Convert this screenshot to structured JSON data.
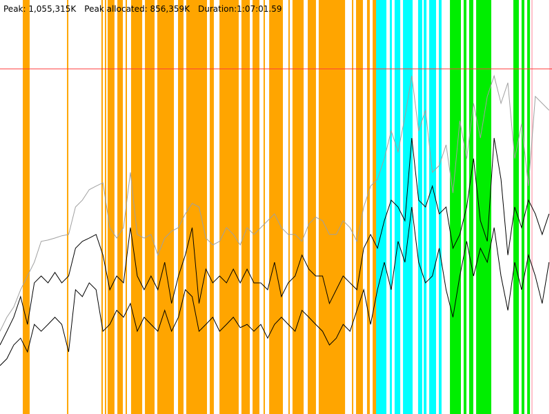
{
  "chart_data": {
    "type": "line",
    "header": [
      "Peak: 1,055,315K",
      "Peak allocated: 856,359K",
      "Duration:1:07:01.59"
    ],
    "xlim": [
      0,
      4021.59
    ],
    "ylim": [
      0,
      1266000
    ],
    "peak_line": {
      "value": 1055315,
      "color": "#ff3b3b"
    },
    "bands": [
      {
        "color": "#ffa500",
        "spans": [
          [
            166,
            216
          ],
          [
            488,
            498
          ],
          [
            739,
            749
          ],
          [
            764,
            774
          ],
          [
            784,
            834
          ],
          [
            855,
            895
          ],
          [
            915,
            925
          ],
          [
            955,
            1036
          ],
          [
            1056,
            1126
          ],
          [
            1146,
            1267
          ],
          [
            1297,
            1337
          ],
          [
            1357,
            1508
          ],
          [
            1528,
            1558
          ],
          [
            1599,
            1739
          ],
          [
            1759,
            1820
          ],
          [
            1840,
            1890
          ],
          [
            1920,
            1930
          ],
          [
            1961,
            2061
          ],
          [
            2101,
            2111
          ],
          [
            2131,
            2212
          ],
          [
            2242,
            2302
          ],
          [
            2322,
            2514
          ],
          [
            2564,
            2574
          ],
          [
            2594,
            2644
          ],
          [
            2674,
            2694
          ],
          [
            2715,
            2745
          ]
        ]
      },
      {
        "color": "#00ffff",
        "spans": [
          [
            2740,
            2815
          ],
          [
            2840,
            2855
          ],
          [
            2875,
            2916
          ],
          [
            2936,
            3006
          ],
          [
            3046,
            3076
          ],
          [
            3087,
            3107
          ],
          [
            3127,
            3177
          ],
          [
            3197,
            3217
          ]
        ]
      },
      {
        "color": "#00ee00",
        "spans": [
          [
            3278,
            3358
          ],
          [
            3378,
            3398
          ],
          [
            3418,
            3448
          ],
          [
            3469,
            3579
          ],
          [
            3740,
            3780
          ],
          [
            3800,
            3820
          ],
          [
            3841,
            3861
          ]
        ]
      },
      {
        "color": "#ffc0cb",
        "spans": [
          [
            3871,
            3881
          ],
          [
            4001,
            4022
          ]
        ]
      }
    ],
    "x": [
      0,
      50,
      100,
      150,
      200,
      250,
      300,
      350,
      400,
      450,
      500,
      550,
      600,
      650,
      700,
      750,
      800,
      850,
      900,
      950,
      1000,
      1050,
      1100,
      1150,
      1200,
      1250,
      1300,
      1350,
      1400,
      1450,
      1500,
      1550,
      1600,
      1650,
      1700,
      1750,
      1800,
      1850,
      1900,
      1950,
      2000,
      2050,
      2100,
      2150,
      2200,
      2250,
      2300,
      2350,
      2400,
      2450,
      2500,
      2550,
      2600,
      2650,
      2700,
      2750,
      2800,
      2850,
      2900,
      2950,
      3000,
      3050,
      3100,
      3150,
      3200,
      3250,
      3300,
      3350,
      3400,
      3450,
      3500,
      3550,
      3600,
      3650,
      3700,
      3750,
      3800,
      3850,
      3900,
      3950,
      4000
    ],
    "series": [
      {
        "color": "#a0a0a0",
        "values": [
          253000,
          296000,
          327000,
          380000,
          422000,
          464000,
          528000,
          532000,
          538000,
          545000,
          549000,
          633000,
          654000,
          686000,
          697000,
          707000,
          570000,
          538000,
          570000,
          739000,
          549000,
          538000,
          549000,
          486000,
          538000,
          559000,
          570000,
          612000,
          644000,
          633000,
          538000,
          517000,
          528000,
          570000,
          549000,
          517000,
          570000,
          549000,
          570000,
          591000,
          612000,
          570000,
          549000,
          549000,
          528000,
          581000,
          602000,
          591000,
          549000,
          549000,
          591000,
          570000,
          528000,
          633000,
          697000,
          718000,
          781000,
          866000,
          802000,
          908000,
          1034000,
          866000,
          929000,
          739000,
          760000,
          823000,
          676000,
          897000,
          781000,
          950000,
          844000,
          971000,
          1034000,
          950000,
          1013000,
          781000,
          887000,
          697000,
          971000,
          950000,
          929000
        ]
      },
      {
        "color": "#000000",
        "values": [
          211000,
          253000,
          296000,
          359000,
          274000,
          401000,
          422000,
          401000,
          433000,
          401000,
          422000,
          507000,
          528000,
          538000,
          549000,
          486000,
          380000,
          422000,
          401000,
          570000,
          422000,
          380000,
          422000,
          380000,
          464000,
          338000,
          422000,
          486000,
          570000,
          338000,
          443000,
          401000,
          422000,
          401000,
          443000,
          401000,
          443000,
          401000,
          401000,
          380000,
          464000,
          359000,
          401000,
          422000,
          486000,
          443000,
          422000,
          422000,
          338000,
          380000,
          422000,
          401000,
          380000,
          507000,
          549000,
          507000,
          591000,
          654000,
          633000,
          591000,
          844000,
          654000,
          633000,
          697000,
          612000,
          633000,
          507000,
          549000,
          633000,
          781000,
          591000,
          528000,
          844000,
          718000,
          486000,
          633000,
          570000,
          654000,
          612000,
          549000,
          612000
        ]
      },
      {
        "color": "#000000",
        "values": [
          148000,
          169000,
          211000,
          232000,
          190000,
          274000,
          253000,
          274000,
          296000,
          274000,
          190000,
          380000,
          359000,
          401000,
          380000,
          253000,
          274000,
          317000,
          296000,
          338000,
          253000,
          296000,
          274000,
          253000,
          317000,
          253000,
          296000,
          380000,
          359000,
          253000,
          274000,
          296000,
          253000,
          274000,
          296000,
          264000,
          274000,
          253000,
          274000,
          232000,
          274000,
          296000,
          274000,
          253000,
          317000,
          296000,
          274000,
          253000,
          211000,
          232000,
          274000,
          253000,
          317000,
          380000,
          274000,
          380000,
          464000,
          380000,
          528000,
          464000,
          633000,
          464000,
          401000,
          422000,
          507000,
          380000,
          296000,
          422000,
          528000,
          422000,
          507000,
          464000,
          570000,
          422000,
          317000,
          464000,
          380000,
          486000,
          422000,
          338000,
          464000
        ]
      }
    ]
  }
}
